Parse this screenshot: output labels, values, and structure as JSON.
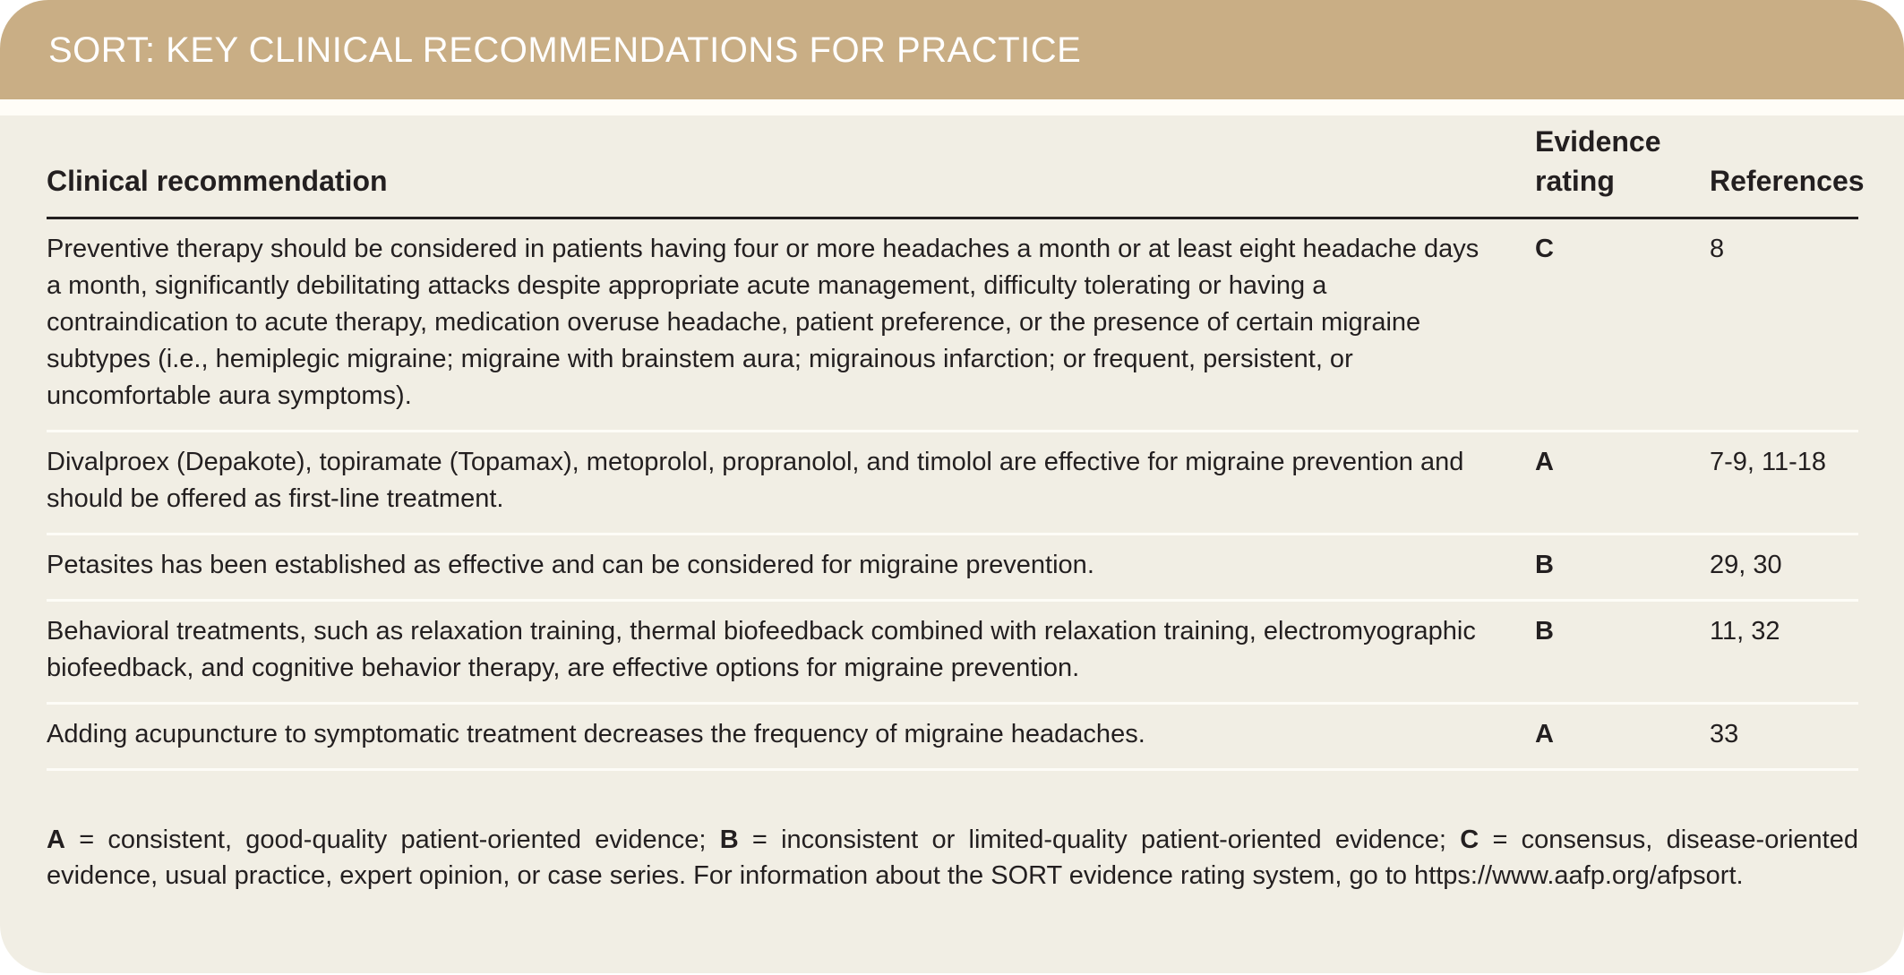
{
  "title": "SORT: KEY CLINICAL RECOMMENDATIONS FOR PRACTICE",
  "columns": [
    "Clinical recommendation",
    "Evidence rating",
    "References"
  ],
  "rows": [
    {
      "recommendation": "Preventive therapy should be considered in patients having four or more headaches a month or at least eight headache days a month, significantly debilitating attacks despite appropriate acute management, difficulty tolerating or having a contraindication to acute therapy, medication overuse headache, patient preference, or the presence of certain migraine subtypes (i.e., hemiplegic migraine; migraine with brainstem aura; migrainous infarction; or frequent, persistent, or uncomfortable aura symptoms).",
      "rating": "C",
      "references": "8"
    },
    {
      "recommendation": "Divalproex (Depakote), topiramate (Topamax), metoprolol, propranolol, and timolol are effective for migraine prevention and should be offered as first-line treatment.",
      "rating": "A",
      "references": "7-9, 11-18"
    },
    {
      "recommendation": "Petasites has been established as effective and can be considered for migraine prevention.",
      "rating": "B",
      "references": "29, 30"
    },
    {
      "recommendation": "Behavioral treatments, such as relaxation training, thermal biofeedback combined with relaxation training, electromyographic biofeedback, and cognitive behavior therapy, are effective options for migraine prevention.",
      "rating": "B",
      "references": "11, 32"
    },
    {
      "recommendation": "Adding acupuncture to symptomatic treatment decreases the frequency of migraine headaches.",
      "rating": "A",
      "references": "33"
    }
  ],
  "footnote": {
    "a_key": "A",
    "a_text": " = consistent, good-quality patient-oriented evidence; ",
    "b_key": "B",
    "b_text": " = inconsistent or limited-quality patient-oriented evidence; ",
    "c_key": "C",
    "c_text": " = consensus, disease-oriented evidence, usual practice, expert opinion, or case series. For information about the SORT evidence rating system, go to https://www.aafp.org/afpsort."
  },
  "colors": {
    "banner": "#c9ae85",
    "background": "#f1eee4",
    "text": "#231f20"
  }
}
